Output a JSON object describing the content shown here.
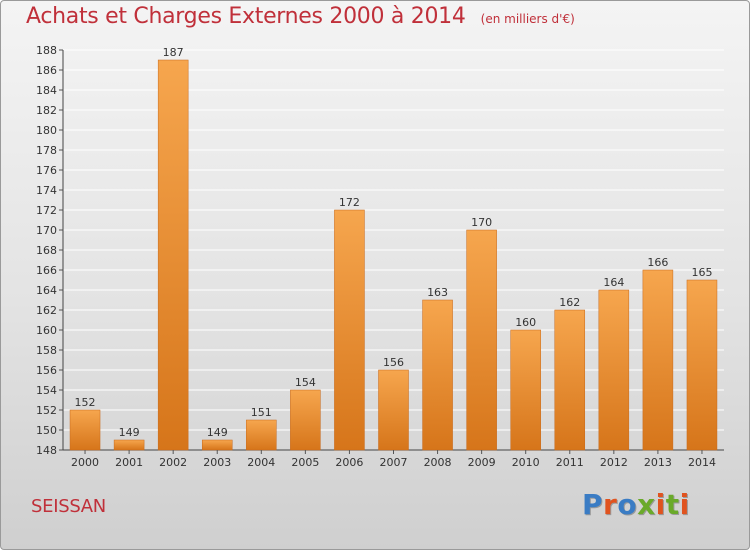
{
  "header": {
    "title": "Achats et Charges Externes 2000 à 2014",
    "unit": "(en milliers d'€)"
  },
  "footer": {
    "commune": "SEISSAN",
    "logo_text": "Proxiti",
    "logo_colors": [
      "#3a7cc4",
      "#e0531f",
      "#3a7cc4",
      "#6aaa2a",
      "#e0531f",
      "#6aaa2a",
      "#e0531f"
    ]
  },
  "colors": {
    "bar_light": "#f6a64e",
    "bar_dark": "#d6751a",
    "title": "#c0303a",
    "grid": "#ffffff"
  },
  "chart_data": {
    "type": "bar",
    "title": "Achats et Charges Externes 2000 à 2014",
    "subtitle": "(en milliers d'€)",
    "xlabel": "",
    "ylabel": "",
    "categories": [
      "2000",
      "2001",
      "2002",
      "2003",
      "2004",
      "2005",
      "2006",
      "2007",
      "2008",
      "2009",
      "2010",
      "2011",
      "2012",
      "2013",
      "2014"
    ],
    "values": [
      152,
      149,
      187,
      149,
      151,
      154,
      172,
      156,
      163,
      170,
      160,
      162,
      164,
      166,
      165
    ],
    "ylim": [
      148,
      188
    ],
    "yticks": [
      148,
      150,
      152,
      154,
      156,
      158,
      160,
      162,
      164,
      166,
      168,
      170,
      172,
      174,
      176,
      178,
      180,
      182,
      184,
      186,
      188
    ],
    "grid": true,
    "legend": "none"
  }
}
